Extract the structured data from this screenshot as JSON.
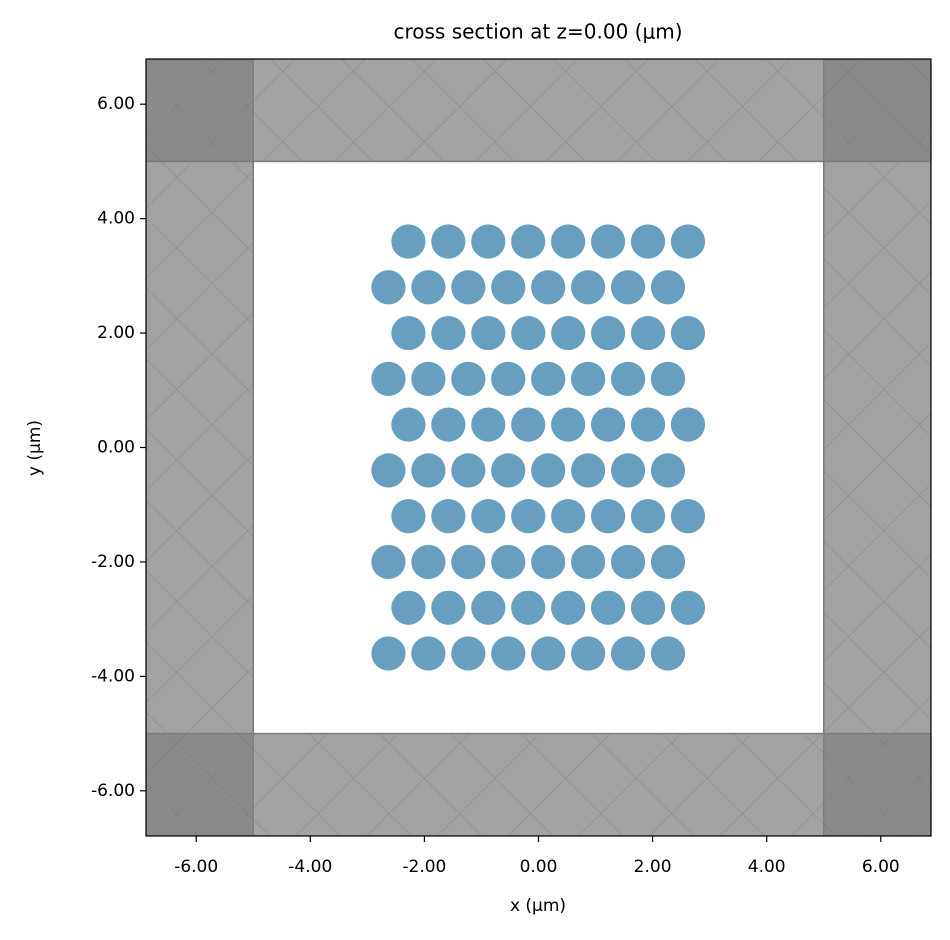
{
  "chart_data": {
    "type": "scatter",
    "title": "cross section at z=0.00 (μm)",
    "x_label": "x (μm)",
    "y_label": "y (μm)",
    "x": [
      -2.28,
      -1.58,
      -0.88,
      -0.18,
      0.52,
      1.22,
      1.92,
      2.62,
      -2.63,
      -1.93,
      -1.23,
      -0.53,
      0.17,
      0.87,
      1.57,
      2.27,
      -2.28,
      -1.58,
      -0.88,
      -0.18,
      0.52,
      1.22,
      1.92,
      2.62,
      -2.63,
      -1.93,
      -1.23,
      -0.53,
      0.17,
      0.87,
      1.57,
      2.27,
      -2.28,
      -1.58,
      -0.88,
      -0.18,
      0.52,
      1.22,
      1.92,
      2.62,
      -2.63,
      -1.93,
      -1.23,
      -0.53,
      0.17,
      0.87,
      1.57,
      2.27,
      -2.28,
      -1.58,
      -0.88,
      -0.18,
      0.52,
      1.22,
      1.92,
      2.62,
      -2.63,
      -1.93,
      -1.23,
      -0.53,
      0.17,
      0.87,
      1.57,
      2.27,
      -2.28,
      -1.58,
      -0.88,
      -0.18,
      0.52,
      1.22,
      1.92,
      2.62,
      -2.63,
      -1.93,
      -1.23,
      -0.53,
      0.17,
      0.87,
      1.57,
      2.27
    ],
    "y": [
      3.6,
      3.6,
      3.6,
      3.6,
      3.6,
      3.6,
      3.6,
      3.6,
      2.8,
      2.8,
      2.8,
      2.8,
      2.8,
      2.8,
      2.8,
      2.8,
      2.0,
      2.0,
      2.0,
      2.0,
      2.0,
      2.0,
      2.0,
      2.0,
      1.2,
      1.2,
      1.2,
      1.2,
      1.2,
      1.2,
      1.2,
      1.2,
      0.4,
      0.4,
      0.4,
      0.4,
      0.4,
      0.4,
      0.4,
      0.4,
      -0.4,
      -0.4,
      -0.4,
      -0.4,
      -0.4,
      -0.4,
      -0.4,
      -0.4,
      -1.2,
      -1.2,
      -1.2,
      -1.2,
      -1.2,
      -1.2,
      -1.2,
      -1.2,
      -2.0,
      -2.0,
      -2.0,
      -2.0,
      -2.0,
      -2.0,
      -2.0,
      -2.0,
      -2.8,
      -2.8,
      -2.8,
      -2.8,
      -2.8,
      -2.8,
      -2.8,
      -2.8,
      -3.6,
      -3.6,
      -3.6,
      -3.6,
      -3.6,
      -3.6,
      -3.6,
      -3.6
    ],
    "radius": 0.3,
    "color": "#689fc0",
    "boundary": [
      -5,
      5
    ],
    "boundary_color": "#808080",
    "xlim": [
      -6.88,
      6.88
    ],
    "ylim": [
      -6.79,
      6.79
    ],
    "xticks": [
      {
        "value": -6,
        "label": "-6.00"
      },
      {
        "value": -4,
        "label": "-4.00"
      },
      {
        "value": -2,
        "label": "-2.00"
      },
      {
        "value": 0,
        "label": "0.00"
      },
      {
        "value": 2,
        "label": "2.00"
      },
      {
        "value": 4,
        "label": "4.00"
      },
      {
        "value": 6,
        "label": "6.00"
      }
    ],
    "yticks": [
      {
        "value": -6,
        "label": "-6.00"
      },
      {
        "value": -4,
        "label": "-4.00"
      },
      {
        "value": -2,
        "label": "-2.00"
      },
      {
        "value": 0,
        "label": "0.00"
      },
      {
        "value": 2,
        "label": "2.00"
      },
      {
        "value": 4,
        "label": "4.00"
      },
      {
        "value": 6,
        "label": "6.00"
      }
    ]
  }
}
